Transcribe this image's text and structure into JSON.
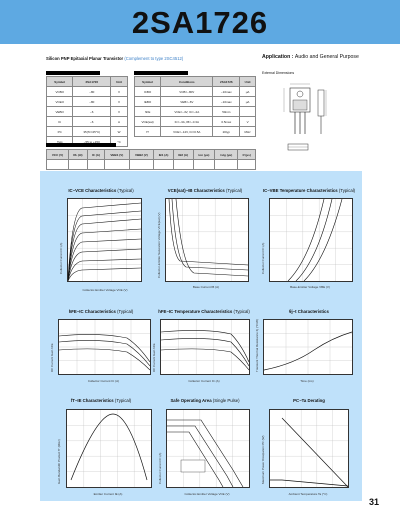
{
  "part_number": "2SA1726",
  "subtitle": {
    "device": "Silicon PNP Epitaxial Planar Transistor",
    "complement": "(Complement to type 2SC4512)",
    "application_label": "Application :",
    "application_value": "Audio and General Purpose"
  },
  "colors": {
    "band": "#5ea9e2",
    "panel": "#bfe1fa",
    "accent": "#3a7fc7"
  },
  "abs_max": {
    "header": [
      "Symbol",
      "2SA1726",
      "Unit"
    ],
    "rows": [
      [
        "VCBO",
        "−80",
        "V"
      ],
      [
        "VCEO",
        "−80",
        "V"
      ],
      [
        "VEBO",
        "−6",
        "V"
      ],
      [
        "IC",
        "−6",
        "A"
      ],
      [
        "PC",
        "35(Tc=25°C)",
        "W"
      ],
      [
        "Tstg",
        "−55 to +150",
        "°C"
      ]
    ]
  },
  "elec_char": {
    "header": [
      "Symbol",
      "Conditions",
      "2SA1726",
      "Unit"
    ],
    "rows": [
      [
        "ICBO",
        "VCB=−80V",
        "−10max",
        "μA"
      ],
      [
        "IEBO",
        "VEB=−6V",
        "−10max",
        "μA"
      ],
      [
        "hFE",
        "VCE=−4V, IC=−2A",
        "50min",
        ""
      ],
      [
        "VCE(sat)",
        "IC=−3A, IB=−0.3A",
        "0.5max",
        "V"
      ],
      [
        "fT",
        "VCE=−12V, IC=0.5A",
        "20typ",
        "MHz"
      ]
    ]
  },
  "switching": {
    "header": [
      "VCC (V)",
      "RL (Ω)",
      "IC (A)",
      "VBB1 (V)",
      "VBB2 (V)",
      "IB1 (A)",
      "IB2 (A)",
      "ton (μs)",
      "tstg (μs)",
      "tf (μs)"
    ]
  },
  "ext_dim_label": "External Dimensions",
  "charts": [
    {
      "title": "IC−VCE Characteristics",
      "typ": "(Typical)",
      "xlabel": "Collector-Emitter Voltage VCE (V)",
      "ylabel": "Collector Current IC (A)"
    },
    {
      "title": "VCE(sat)−IB Characteristics",
      "typ": "(Typical)",
      "xlabel": "Base Current IB (A)",
      "ylabel": "Collector-Emitter Saturation Voltage VCE(sat) (V)"
    },
    {
      "title": "IC−VBE Temperature Characteristics",
      "typ": "(Typical)",
      "xlabel": "Base-Emitter Voltage VBE (V)",
      "ylabel": "Collector Current IC (A)"
    },
    {
      "title": "hFE−IC Characteristics",
      "typ": "(Typical)",
      "xlabel": "Collector Current IC (A)",
      "ylabel": "DC Current Gain hFE"
    },
    {
      "title": "hFE−IC Temperature Characteristics",
      "typ": "(Typical)",
      "xlabel": "Collector Current IC (A)",
      "ylabel": "DC Current Gain hFE"
    },
    {
      "title": "θj−t Characteristics",
      "typ": "",
      "xlabel": "Time (ms)",
      "ylabel": "Transient Thermal Resistance θj (°C/W)"
    },
    {
      "title": "fT−IE Characteristics",
      "typ": "(Typical)",
      "xlabel": "Emitter Current IE (A)",
      "ylabel": "Gain Bandwidth Product fT (MHz)"
    },
    {
      "title": "Safe Operating Area",
      "typ": "(Single Pulse)",
      "xlabel": "Collector-Emitter Voltage VCE (V)",
      "ylabel": "Collector Current IC (A)"
    },
    {
      "title": "PC−Ta Derating",
      "typ": "",
      "xlabel": "Ambient Temperature Ta (°C)",
      "ylabel": "Maximum Power Dissipation PC (W)"
    }
  ],
  "page_number": "31"
}
